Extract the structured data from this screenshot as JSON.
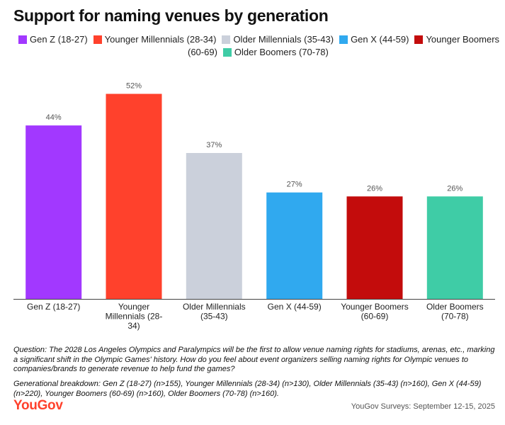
{
  "title": "Support for naming venues by generation",
  "legend": [
    {
      "label": "Gen Z (18-27)",
      "color": "#a238ff"
    },
    {
      "label": "Younger Millennials (28-34)",
      "color": "#ff412c"
    },
    {
      "label": "Older Millennials (35-43)",
      "color": "#cbd0db"
    },
    {
      "label": "Gen X (44-59)",
      "color": "#30a9ef"
    },
    {
      "label": "Younger Boomers",
      "color": "#c30c0c"
    },
    {
      "label": "(60-69)",
      "color": ""
    },
    {
      "label": "Older Boomers (70-78)",
      "color": "#3fcca6"
    }
  ],
  "chart_data": {
    "type": "bar",
    "title": "Support for naming venues by generation",
    "categories": [
      [
        "Gen Z (18-27)"
      ],
      [
        "Younger",
        "Millennials (28-",
        "34)"
      ],
      [
        "Older Millennials",
        "(35-43)"
      ],
      [
        "Gen X (44-59)"
      ],
      [
        "Younger Boomers",
        "(60-69)"
      ],
      [
        "Older Boomers",
        "(70-78)"
      ]
    ],
    "values": [
      44,
      52,
      37,
      27,
      26,
      26
    ],
    "labels": [
      "44%",
      "52%",
      "37%",
      "27%",
      "26%",
      "26%"
    ],
    "colors": [
      "#a238ff",
      "#ff412c",
      "#cbd0db",
      "#30a9ef",
      "#c30c0c",
      "#3fcca6"
    ],
    "ylim": [
      0,
      60
    ],
    "xlabel": "",
    "ylabel": "",
    "grid": false
  },
  "question": "Question: The 2028 Los Angeles Olympics and Paralympics will be the first to allow venue naming rights for stadiums, arenas, etc., marking a significant shift in the Olympic Games' history. How do you feel about event organizers selling naming rights for Olympic venues to companies/brands to generate revenue to help fund the games?",
  "breakdown": "Generational breakdown: Gen Z (18-27) (n>155), Younger Millennials (28-34) (n>130), Older Millennials (35-43) (n>160), Gen X (44-59) (n>220), Younger Boomers (60-69) (n>160), Older Boomers (70-78) (n>160).",
  "brand": "YouGov",
  "source": "YouGov Surveys: September 12-15, 2025"
}
